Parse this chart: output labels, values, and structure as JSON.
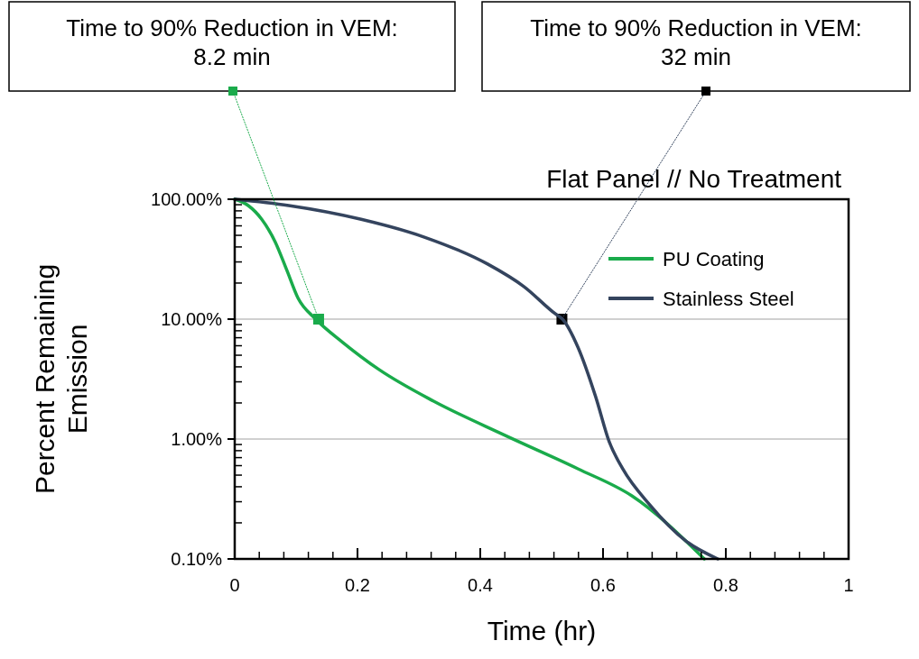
{
  "chart_data": {
    "type": "line",
    "title": "Flat Panel // No Treatment",
    "xlabel": "Time (hr)",
    "ylabel": "Percent Remaining Emission",
    "log": "y",
    "grid": "y",
    "legend": "top right",
    "marker": "none",
    "line_style": "solid",
    "xlim": [
      0,
      1
    ],
    "xticks": [
      0,
      0.2,
      0.4,
      0.6,
      0.8,
      1
    ],
    "ylim": [
      0.1,
      100
    ],
    "yticks": [
      {
        "value": 0.1,
        "label": "0.10%"
      },
      {
        "value": 1,
        "label": "1.00%"
      },
      {
        "value": 10,
        "label": "10.00%"
      },
      {
        "value": 100,
        "label": "100.00%"
      }
    ],
    "series": [
      {
        "name": "PU Coating",
        "color": "#1aab4b",
        "x": [
          0,
          0.022,
          0.044,
          0.066,
          0.085,
          0.103,
          0.132,
          0.176,
          0.235,
          0.324,
          0.441,
          0.559,
          0.647,
          0.765
        ],
        "values": [
          100,
          88.6,
          68,
          44,
          25.5,
          15,
          10,
          6.4,
          3.8,
          2.07,
          1.07,
          0.565,
          0.336,
          0.1
        ]
      },
      {
        "name": "Stainless Steel",
        "color": "#34445e",
        "x": [
          0,
          0.088,
          0.206,
          0.309,
          0.412,
          0.471,
          0.522,
          0.534,
          0.559,
          0.588,
          0.61,
          0.632,
          0.676,
          0.735,
          0.787
        ],
        "values": [
          100,
          88.6,
          68,
          48.3,
          28.8,
          18.7,
          11.1,
          10,
          5.85,
          2.25,
          0.95,
          0.565,
          0.283,
          0.141,
          0.1
        ]
      }
    ],
    "annotations": [
      {
        "text": "Time to 90% Reduction in VEM:\n8.2 min",
        "x": 0.1367,
        "y": 10
      },
      {
        "text": "Time to 90% Reduction in VEM:\n32 min",
        "x": 0.533,
        "y": 10
      }
    ]
  }
}
